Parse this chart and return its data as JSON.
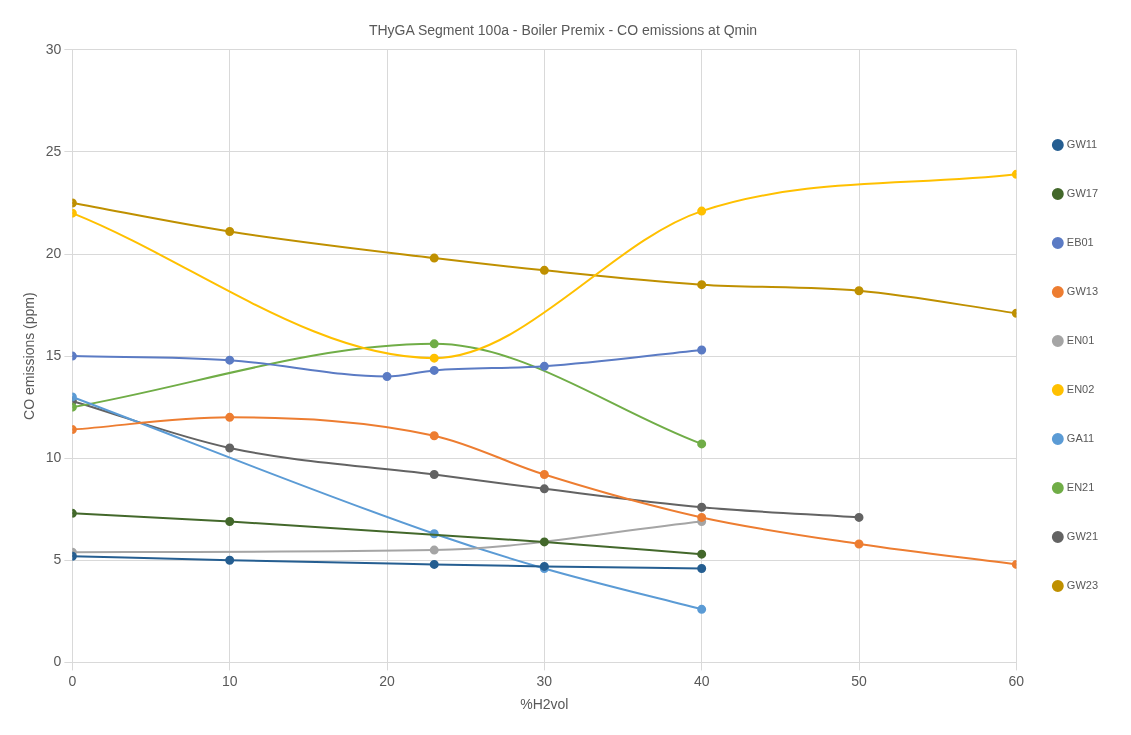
{
  "chart_data": {
    "type": "line",
    "title": "THyGA Segment 100a - Boiler Premix - CO emissions at Qmin",
    "xlabel": "%H2vol",
    "ylabel": "CO emissions (ppm)",
    "xlim": [
      0,
      60
    ],
    "xticks": [
      0,
      10,
      20,
      30,
      40,
      50,
      60
    ],
    "ylim": [
      0,
      30
    ],
    "yticks": [
      0,
      5,
      10,
      15,
      20,
      25,
      30
    ],
    "grid": true,
    "legend": "right",
    "marker": "circle",
    "line_style": "solid",
    "series": [
      {
        "name": "GW11",
        "color": "#255e91",
        "x": [
          0,
          10,
          23,
          30,
          40
        ],
        "values": [
          5.2,
          5.0,
          4.8,
          4.7,
          4.6
        ]
      },
      {
        "name": "GW17",
        "color": "#43682b",
        "x": [
          0,
          10,
          30,
          40
        ],
        "values": [
          7.3,
          6.9,
          5.9,
          5.3
        ]
      },
      {
        "name": "EB01",
        "color": "#5b7bc4",
        "x": [
          0,
          10,
          20,
          23,
          30,
          40
        ],
        "values": [
          15.0,
          14.8,
          14.0,
          14.3,
          14.5,
          15.3
        ]
      },
      {
        "name": "GW13",
        "color": "#ed7d31",
        "x": [
          0,
          10,
          23,
          30,
          40,
          50,
          60
        ],
        "values": [
          11.4,
          12.0,
          11.1,
          9.2,
          7.1,
          5.8,
          4.8
        ]
      },
      {
        "name": "EN01",
        "color": "#a5a5a5",
        "x": [
          0,
          23,
          40
        ],
        "values": [
          5.4,
          5.5,
          6.9
        ]
      },
      {
        "name": "EN02",
        "color": "#ffc000",
        "x": [
          0,
          23,
          40,
          60
        ],
        "values": [
          22.0,
          14.9,
          22.1,
          23.9
        ]
      },
      {
        "name": "GA11",
        "color": "#5b9bd5",
        "x": [
          0,
          23,
          30,
          40
        ],
        "values": [
          13.0,
          6.3,
          4.6,
          2.6
        ]
      },
      {
        "name": "EN21",
        "color": "#70ad47",
        "x": [
          0,
          23,
          40
        ],
        "values": [
          12.5,
          15.6,
          10.7
        ]
      },
      {
        "name": "GW21",
        "color": "#636363",
        "x": [
          0,
          10,
          23,
          30,
          40,
          50
        ],
        "values": [
          12.8,
          10.5,
          9.2,
          8.5,
          7.6,
          7.1
        ]
      },
      {
        "name": "GW23",
        "color": "#bf9000",
        "x": [
          0,
          10,
          23,
          30,
          40,
          50,
          60
        ],
        "values": [
          22.5,
          21.1,
          19.8,
          19.2,
          18.5,
          18.2,
          17.1
        ]
      }
    ]
  }
}
